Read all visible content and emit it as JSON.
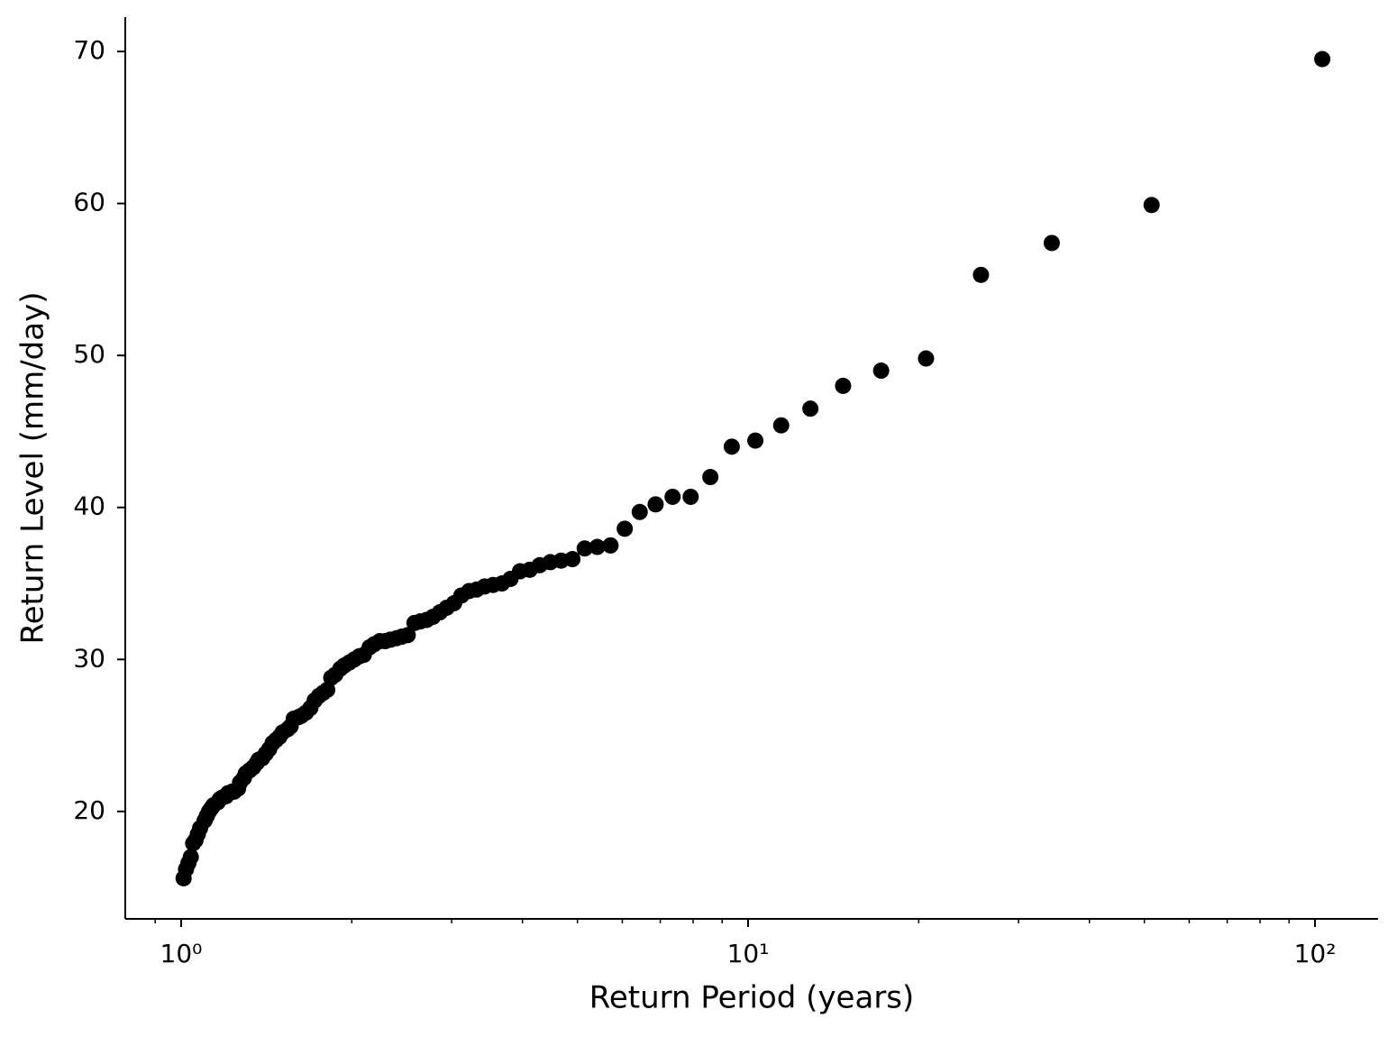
{
  "chart_data": {
    "type": "scatter",
    "xlabel": "Return Period (years)",
    "ylabel": "Return Level (mm/day)",
    "xscale": "log",
    "color": "#000000",
    "xlim": [
      0.797,
      129.2
    ],
    "ylim": [
      12.93,
      72.26
    ],
    "xticks": [
      {
        "value": 1,
        "label": "10⁰"
      },
      {
        "value": 10,
        "label": "10¹"
      },
      {
        "value": 100,
        "label": "10²"
      }
    ],
    "xminorticks": [
      0.9,
      2,
      3,
      4,
      5,
      6,
      7,
      8,
      9,
      20,
      30,
      40,
      50,
      60,
      70,
      80,
      90
    ],
    "yticks": [
      20,
      30,
      40,
      50,
      60,
      70
    ],
    "x": [
      103,
      51.5,
      34.33,
      25.75,
      20.6,
      17.17,
      14.71,
      12.88,
      11.44,
      10.3,
      9.36,
      8.58,
      7.92,
      7.36,
      6.87,
      6.44,
      6.06,
      5.72,
      5.42,
      5.15,
      4.9,
      4.68,
      4.48,
      4.29,
      4.12,
      3.96,
      3.81,
      3.68,
      3.55,
      3.43,
      3.32,
      3.22,
      3.12,
      3.03,
      2.94,
      2.86,
      2.78,
      2.71,
      2.64,
      2.58,
      2.51,
      2.45,
      2.4,
      2.34,
      2.29,
      2.24,
      2.19,
      2.15,
      2.1,
      2.06,
      2.02,
      1.98,
      1.94,
      1.91,
      1.87,
      1.84,
      1.81,
      1.78,
      1.75,
      1.72,
      1.69,
      1.66,
      1.63,
      1.61,
      1.58,
      1.56,
      1.54,
      1.51,
      1.49,
      1.47,
      1.45,
      1.43,
      1.41,
      1.39,
      1.37,
      1.36,
      1.34,
      1.32,
      1.3,
      1.29,
      1.27,
      1.26,
      1.24,
      1.23,
      1.21,
      1.2,
      1.18,
      1.17,
      1.16,
      1.14,
      1.13,
      1.12,
      1.11,
      1.1,
      1.08,
      1.07,
      1.06,
      1.05,
      1.04,
      1.03,
      1.02,
      1.01
    ],
    "values": [
      69.5,
      59.9,
      57.4,
      55.3,
      49.8,
      49.0,
      48.0,
      46.5,
      45.4,
      44.4,
      44.0,
      42.0,
      40.7,
      40.7,
      40.2,
      39.7,
      38.6,
      37.5,
      37.4,
      37.3,
      36.6,
      36.5,
      36.4,
      36.2,
      35.9,
      35.8,
      35.3,
      35.0,
      34.9,
      34.8,
      34.6,
      34.5,
      34.2,
      33.7,
      33.4,
      33.1,
      32.8,
      32.6,
      32.5,
      32.4,
      31.6,
      31.5,
      31.4,
      31.3,
      31.2,
      31.2,
      31.0,
      30.8,
      30.3,
      30.2,
      30.0,
      29.8,
      29.6,
      29.4,
      29.0,
      28.8,
      28.0,
      27.8,
      27.6,
      27.3,
      26.8,
      26.5,
      26.3,
      26.2,
      26.1,
      25.6,
      25.4,
      25.2,
      24.9,
      24.7,
      24.5,
      24.1,
      23.8,
      23.5,
      23.4,
      23.2,
      22.9,
      22.7,
      22.5,
      22.2,
      21.9,
      21.5,
      21.3,
      21.3,
      21.2,
      21.0,
      20.9,
      20.8,
      20.6,
      20.4,
      20.2,
      20.0,
      19.7,
      19.4,
      18.9,
      18.5,
      18.1,
      17.9,
      17.0,
      16.6,
      16.2,
      15.6
    ]
  }
}
